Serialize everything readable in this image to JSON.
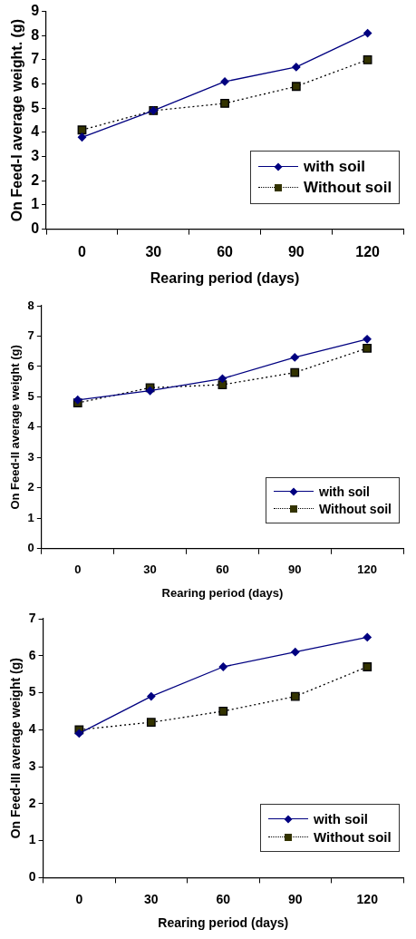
{
  "chart_data": [
    {
      "type": "line",
      "xlabel": "Rearing period (days)",
      "ylabel": "On Feed-I average weight. (g)",
      "categories": [
        "0",
        "30",
        "60",
        "90",
        "120"
      ],
      "ylim": [
        0,
        9
      ],
      "yticks": [
        0,
        1,
        2,
        3,
        4,
        5,
        6,
        7,
        8,
        9
      ],
      "grid": false,
      "legend": "bottom right",
      "series": [
        {
          "name": "with soil",
          "color": "#000080",
          "marker": "diamond",
          "line_style": "solid",
          "values": [
            3.8,
            4.9,
            6.1,
            6.7,
            8.1
          ]
        },
        {
          "name": "Without soil",
          "color": "#000000",
          "marker": "square",
          "line_style": "dotted",
          "values": [
            4.1,
            4.9,
            5.2,
            5.9,
            7.0
          ]
        }
      ]
    },
    {
      "type": "line",
      "xlabel": "Rearing period (days)",
      "ylabel": "On Feed-II average weight (g)",
      "categories": [
        "0",
        "30",
        "60",
        "90",
        "120"
      ],
      "ylim": [
        0,
        8
      ],
      "yticks": [
        0,
        1,
        2,
        3,
        4,
        5,
        6,
        7,
        8
      ],
      "grid": false,
      "legend": "bottom right",
      "series": [
        {
          "name": "with soil",
          "color": "#000080",
          "marker": "diamond",
          "line_style": "solid",
          "values": [
            4.9,
            5.2,
            5.6,
            6.3,
            6.9
          ]
        },
        {
          "name": "Without soil",
          "color": "#000000",
          "marker": "square",
          "line_style": "dotted",
          "values": [
            4.8,
            5.3,
            5.4,
            5.8,
            6.6
          ]
        }
      ]
    },
    {
      "type": "line",
      "xlabel": "Rearing period (days)",
      "ylabel": "On Feed-III average weight (g)",
      "categories": [
        "0",
        "30",
        "60",
        "90",
        "120"
      ],
      "ylim": [
        0,
        7
      ],
      "yticks": [
        0,
        1,
        2,
        3,
        4,
        5,
        6,
        7
      ],
      "grid": false,
      "legend": "bottom right",
      "series": [
        {
          "name": "with soil",
          "color": "#000080",
          "marker": "diamond",
          "line_style": "solid",
          "values": [
            3.9,
            4.9,
            5.7,
            6.1,
            6.5
          ]
        },
        {
          "name": "Without soil",
          "color": "#000000",
          "marker": "square",
          "line_style": "dotted",
          "values": [
            4.0,
            4.2,
            4.5,
            4.9,
            5.7
          ]
        }
      ]
    }
  ]
}
